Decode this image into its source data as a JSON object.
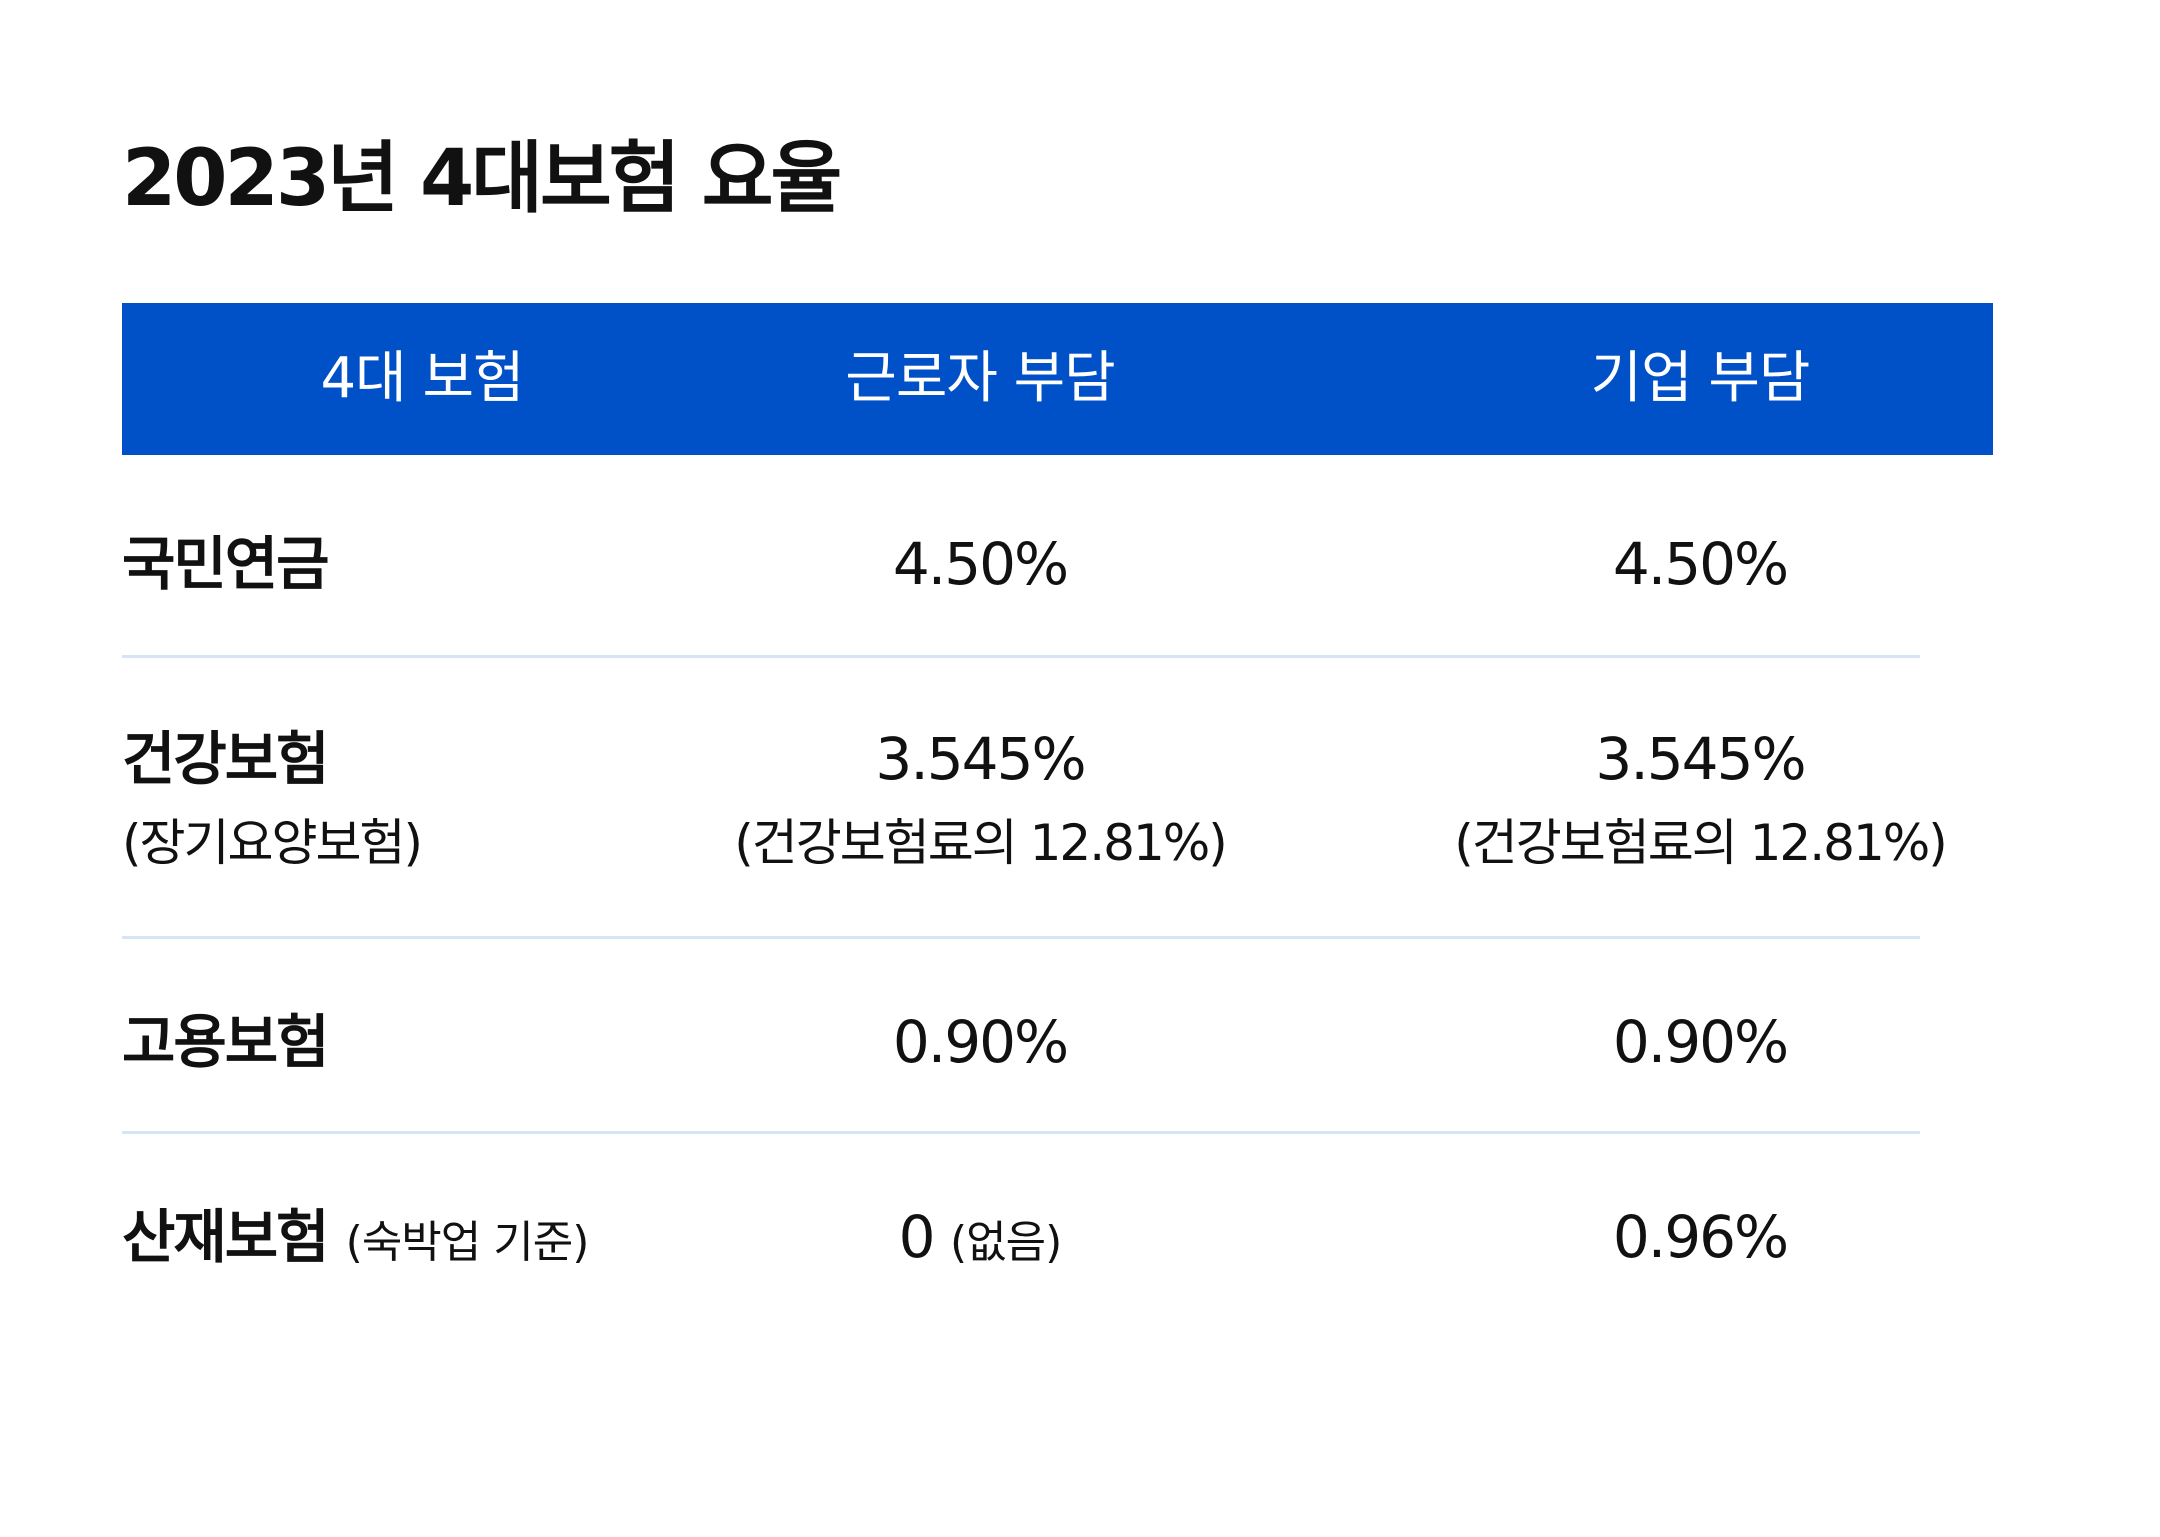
{
  "title": "2023년 4대보험 요율",
  "header": {
    "col1": "4대 보험",
    "col2": "근로자 부담",
    "col3": "기업 부담"
  },
  "rows": [
    {
      "label": "국민연금",
      "worker": "4.50%",
      "company": "4.50%"
    },
    {
      "label": "건강보험",
      "label_sub": "(장기요양보험)",
      "worker": "3.545%",
      "worker_sub": "(건강보험료의 12.81%)",
      "company": "3.545%",
      "company_sub": "(건강보험료의 12.81%)"
    },
    {
      "label": "고용보험",
      "worker": "0.90%",
      "company": "0.90%"
    },
    {
      "label": "산재보험",
      "label_note": "(숙박업 기준)",
      "worker": "0",
      "worker_note": "(없음)",
      "company": "0.96%"
    }
  ],
  "colors": {
    "header_bg": "#0050c8",
    "header_text": "#ffffff",
    "divider": "#d7e4f6",
    "text": "#111111"
  }
}
